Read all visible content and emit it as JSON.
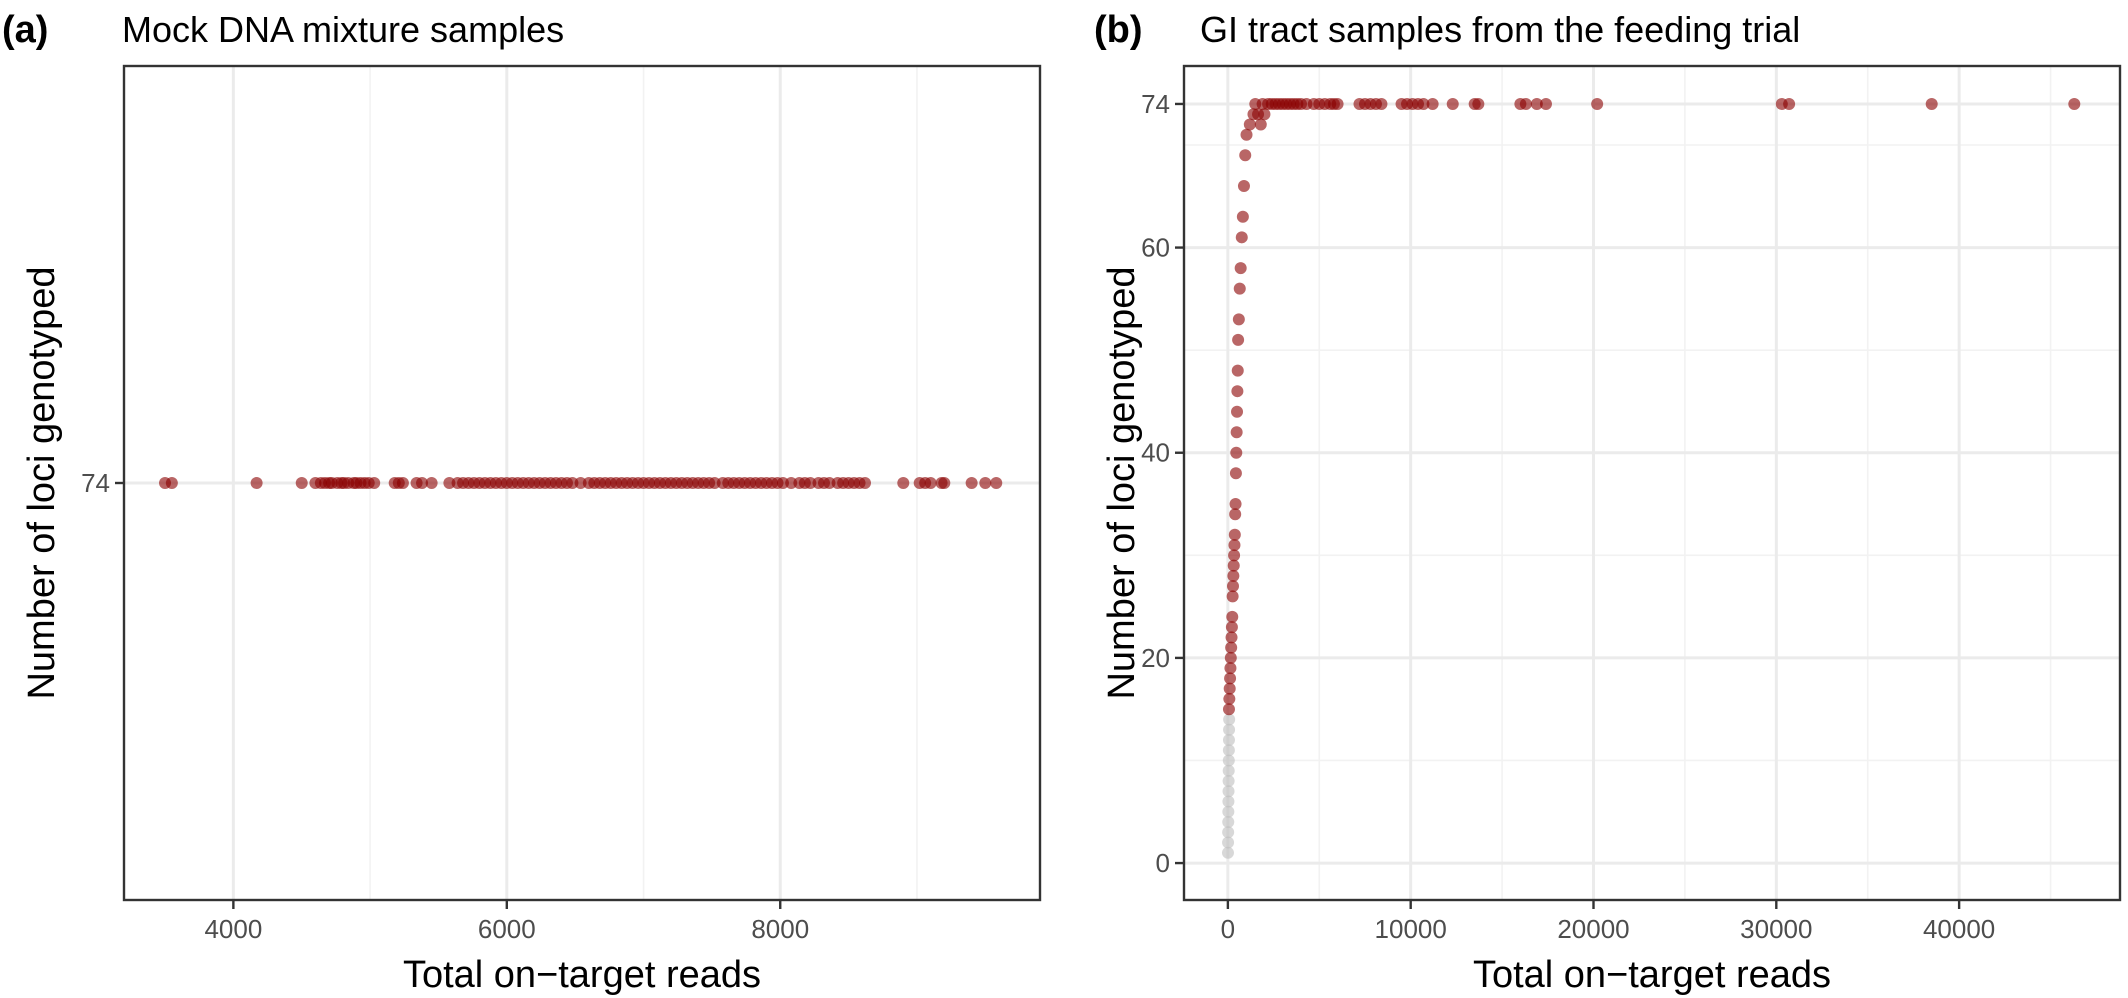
{
  "colors": {
    "genotyped": "#8b0000",
    "not_genotyped": "#bebebe",
    "grid": "#ebebeb",
    "frame": "#333333"
  },
  "chart_data": [
    {
      "type": "scatter",
      "panel": "(a)",
      "title": "Mock DNA mixture samples",
      "xlabel": "Total on−target reads",
      "ylabel": "Number of loci genotyped",
      "xlim": [
        3200,
        9900
      ],
      "ylim": [
        73.6,
        74.4
      ],
      "xticks": [
        4000,
        6000,
        8000
      ],
      "yticks": [
        74
      ],
      "xtick_labels": [
        "4000",
        "6000",
        "8000"
      ],
      "ytick_labels": [
        "74"
      ],
      "grid": true,
      "legend": "none",
      "series": [
        {
          "color": "#8b0000",
          "x": [
            3500,
            3550,
            4170,
            4500,
            4600,
            4640,
            4670,
            4700,
            4720,
            4760,
            4790,
            4810,
            4840,
            4880,
            4900,
            4930,
            4960,
            4990,
            5030,
            5180,
            5210,
            5240,
            5340,
            5380,
            5450,
            5580,
            5640,
            5680,
            5720,
            5760,
            5800,
            5840,
            5880,
            5920,
            5960,
            6000,
            6040,
            6080,
            6120,
            6160,
            6200,
            6240,
            6280,
            6320,
            6360,
            6400,
            6440,
            6480,
            6540,
            6600,
            6640,
            6680,
            6720,
            6760,
            6800,
            6840,
            6880,
            6920,
            6960,
            7000,
            7040,
            7080,
            7120,
            7160,
            7200,
            7240,
            7280,
            7320,
            7360,
            7400,
            7440,
            7480,
            7520,
            7580,
            7620,
            7660,
            7700,
            7740,
            7780,
            7820,
            7860,
            7900,
            7940,
            7980,
            8020,
            8080,
            8140,
            8180,
            8220,
            8280,
            8320,
            8360,
            8420,
            8460,
            8500,
            8540,
            8580,
            8620,
            8900,
            9020,
            9060,
            9100,
            9180,
            9200,
            9400,
            9500,
            9580
          ],
          "y": [
            74,
            74,
            74,
            74,
            74,
            74,
            74,
            74,
            74,
            74,
            74,
            74,
            74,
            74,
            74,
            74,
            74,
            74,
            74,
            74,
            74,
            74,
            74,
            74,
            74,
            74,
            74,
            74,
            74,
            74,
            74,
            74,
            74,
            74,
            74,
            74,
            74,
            74,
            74,
            74,
            74,
            74,
            74,
            74,
            74,
            74,
            74,
            74,
            74,
            74,
            74,
            74,
            74,
            74,
            74,
            74,
            74,
            74,
            74,
            74,
            74,
            74,
            74,
            74,
            74,
            74,
            74,
            74,
            74,
            74,
            74,
            74,
            74,
            74,
            74,
            74,
            74,
            74,
            74,
            74,
            74,
            74,
            74,
            74,
            74,
            74,
            74,
            74,
            74,
            74,
            74,
            74,
            74,
            74,
            74,
            74,
            74,
            74,
            74,
            74,
            74,
            74,
            74,
            74,
            74,
            74,
            74
          ]
        }
      ]
    },
    {
      "type": "scatter",
      "panel": "(b)",
      "title": "GI tract samples from the feeding trial",
      "xlabel": "Total on−target reads",
      "ylabel": "Number of loci genotyped",
      "xlim": [
        -2400,
        48800
      ],
      "ylim": [
        -3.6,
        77.7
      ],
      "xticks": [
        0,
        10000,
        20000,
        30000,
        40000
      ],
      "yticks": [
        0,
        20,
        40,
        60,
        74
      ],
      "xtick_labels": [
        "0",
        "10000",
        "20000",
        "30000",
        "40000"
      ],
      "ytick_labels": [
        "0",
        "20",
        "40",
        "60",
        "74"
      ],
      "grid": true,
      "legend": "none",
      "series": [
        {
          "color": "#bebebe",
          "x": [
            5,
            10,
            15,
            20,
            25,
            30,
            35,
            40,
            45,
            50,
            55,
            60,
            65,
            70
          ],
          "y": [
            1,
            2,
            3,
            4,
            5,
            6,
            7,
            8,
            9,
            10,
            11,
            12,
            13,
            14
          ]
        },
        {
          "color": "#8b0000",
          "x": [
            60,
            80,
            100,
            120,
            140,
            160,
            180,
            200,
            220,
            240,
            260,
            280,
            300,
            320,
            340,
            360,
            380,
            400,
            420,
            440,
            460,
            480,
            500,
            520,
            540,
            560,
            600,
            650,
            700,
            760,
            820,
            880,
            950,
            1020,
            1200,
            1400,
            1500,
            1650,
            1800,
            1900,
            2000,
            2200,
            2400,
            2600,
            2800,
            3000,
            3200,
            3400,
            3600,
            3800,
            4000,
            4300,
            4700,
            5000,
            5300,
            5600,
            5800,
            6000,
            7200,
            7500,
            7800,
            8100,
            8400,
            9500,
            9800,
            10100,
            10400,
            10700,
            11200,
            12300,
            13500,
            13700,
            16000,
            16300,
            16900,
            17400,
            20200,
            30300,
            30700,
            38500,
            46300
          ],
          "y": [
            15,
            16,
            17,
            18,
            19,
            20,
            21,
            22,
            23,
            24,
            26,
            27,
            28,
            29,
            30,
            31,
            32,
            34,
            35,
            38,
            40,
            42,
            44,
            46,
            48,
            51,
            53,
            56,
            58,
            61,
            63,
            66,
            69,
            71,
            72,
            73,
            74,
            73,
            72,
            74,
            73,
            74,
            74,
            74,
            74,
            74,
            74,
            74,
            74,
            74,
            74,
            74,
            74,
            74,
            74,
            74,
            74,
            74,
            74,
            74,
            74,
            74,
            74,
            74,
            74,
            74,
            74,
            74,
            74,
            74,
            74,
            74,
            74,
            74,
            74,
            74,
            74,
            74,
            74,
            74,
            74
          ]
        }
      ]
    }
  ]
}
